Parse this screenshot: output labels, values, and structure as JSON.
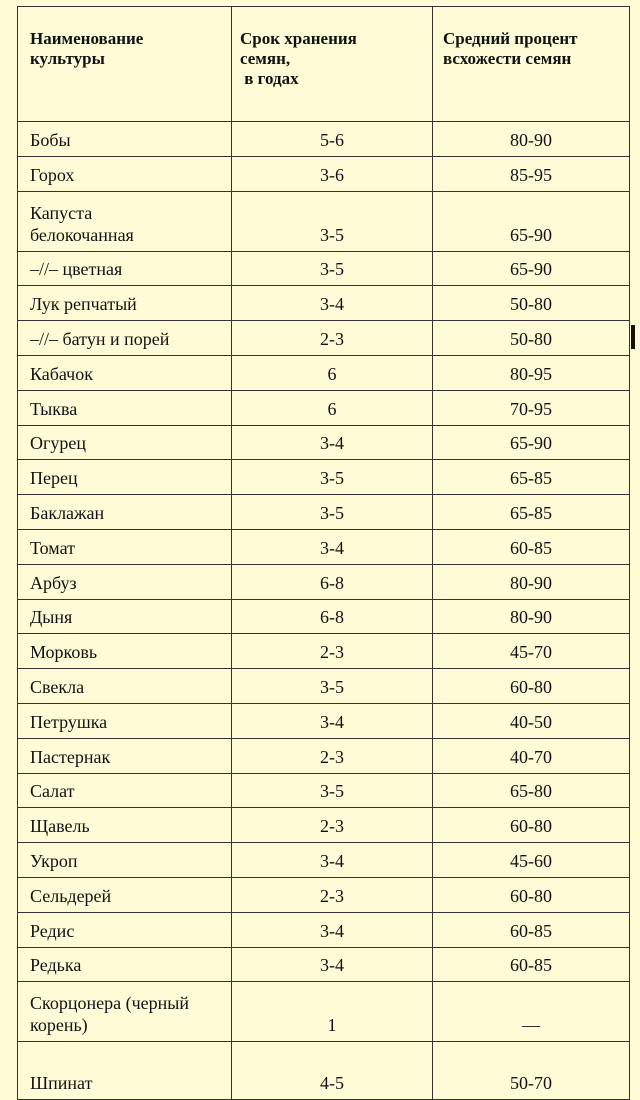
{
  "table": {
    "headers": {
      "name": [
        "Наименование",
        "культуры"
      ],
      "storage": [
        "Срок хранения",
        "семян,",
        "в годах"
      ],
      "germination": [
        "Средний процент",
        "всхожести семян"
      ]
    },
    "rows": [
      {
        "name": "Бобы",
        "storage": "5-6",
        "germination": "80-90"
      },
      {
        "name": "Горох",
        "storage": "3-6",
        "germination": "85-95"
      },
      {
        "name": "Капуста\nбелокочанная",
        "storage": "3-5",
        "germination": "65-90"
      },
      {
        "name": "–//–  цветная",
        "storage": "3-5",
        "germination": "65-90"
      },
      {
        "name": "Лук репчатый",
        "storage": "3-4",
        "germination": "50-80"
      },
      {
        "name": "–//–  батун и порей",
        "storage": "2-3",
        "germination": "50-80"
      },
      {
        "name": "Кабачок",
        "storage": "6",
        "germination": "80-95"
      },
      {
        "name": "Тыква",
        "storage": "6",
        "germination": "70-95"
      },
      {
        "name": "Огурец",
        "storage": "3-4",
        "germination": "65-90"
      },
      {
        "name": "Перец",
        "storage": "3-5",
        "germination": "65-85"
      },
      {
        "name": "Баклажан",
        "storage": "3-5",
        "germination": "65-85"
      },
      {
        "name": "Томат",
        "storage": "3-4",
        "germination": "60-85"
      },
      {
        "name": "Арбуз",
        "storage": "6-8",
        "germination": "80-90"
      },
      {
        "name": "Дыня",
        "storage": "6-8",
        "germination": "80-90"
      },
      {
        "name": "Морковь",
        "storage": "2-3",
        "germination": "45-70"
      },
      {
        "name": "Свекла",
        "storage": "3-5",
        "germination": "60-80"
      },
      {
        "name": "Петрушка",
        "storage": "3-4",
        "germination": "40-50"
      },
      {
        "name": "Пастернак",
        "storage": "2-3",
        "germination": "40-70"
      },
      {
        "name": "Салат",
        "storage": "3-5",
        "germination": "65-80"
      },
      {
        "name": "Щавель",
        "storage": "2-3",
        "germination": "60-80"
      },
      {
        "name": "Укроп",
        "storage": "3-4",
        "germination": "45-60"
      },
      {
        "name": "Сельдерей",
        "storage": "2-3",
        "germination": "60-80"
      },
      {
        "name": "Редис",
        "storage": "3-4",
        "germination": "60-85"
      },
      {
        "name": "Редька",
        "storage": "3-4",
        "germination": "60-85"
      },
      {
        "name": "Скорцонера (черный\nкорень)",
        "storage": "1",
        "germination": "—"
      },
      {
        "name": "Шпинат",
        "storage": "4-5",
        "germination": "50-70"
      }
    ]
  }
}
